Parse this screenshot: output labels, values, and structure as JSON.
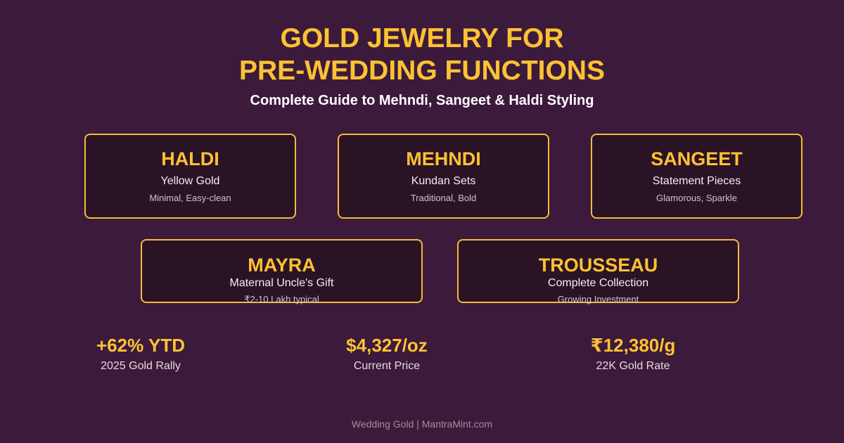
{
  "header": {
    "title_line1": "GOLD JEWELRY FOR",
    "title_line2": "PRE-WEDDING FUNCTIONS",
    "subtitle": "Complete Guide to Mehndi, Sangeet & Haldi Styling"
  },
  "functions": [
    {
      "name": "HALDI",
      "type": "Yellow Gold",
      "desc": "Minimal, Easy-clean"
    },
    {
      "name": "MEHNDI",
      "type": "Kundan Sets",
      "desc": "Traditional, Bold"
    },
    {
      "name": "SANGEET",
      "type": "Statement Pieces",
      "desc": "Glamorous, Sparkle"
    },
    {
      "name": "MAYRA",
      "type": "Maternal Uncle's Gift",
      "desc": "₹2-10 Lakh typical"
    },
    {
      "name": "TROUSSEAU",
      "type": "Complete Collection",
      "desc": "Growing Investment"
    }
  ],
  "stats": [
    {
      "value": "+62% YTD",
      "label": "2025 Gold Rally"
    },
    {
      "value": "$4,327/oz",
      "label": "Current Price"
    },
    {
      "value": "₹12,380/g",
      "label": "22K Gold Rate"
    }
  ],
  "footer": "Wedding Gold | MantraMint.com",
  "colors": {
    "background": "#3c1a3b",
    "accent": "#fdc232",
    "card": "#2b1326"
  }
}
